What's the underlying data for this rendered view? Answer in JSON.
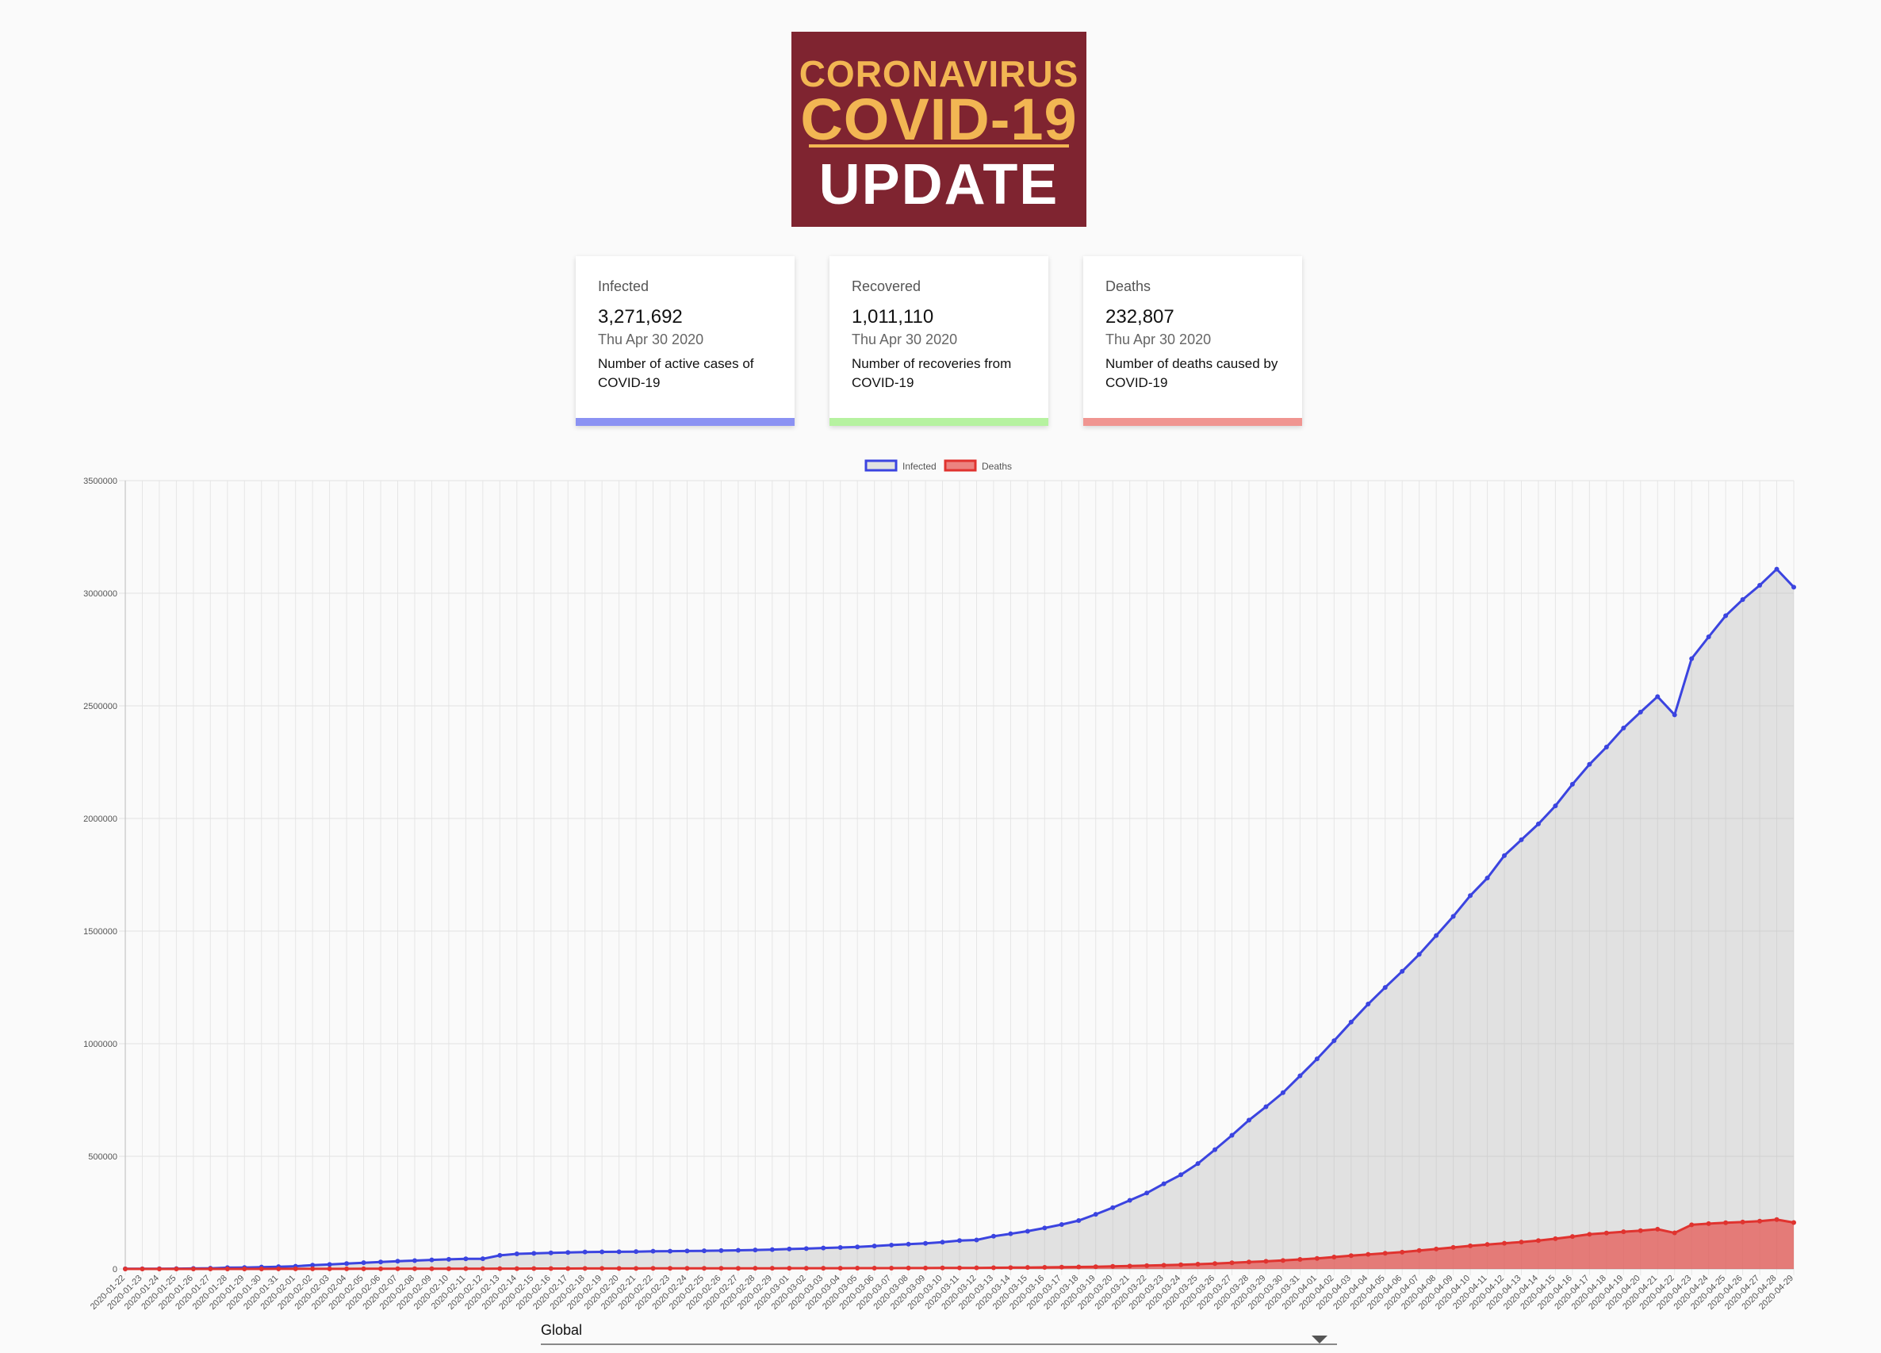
{
  "logo": {
    "line1": "CORONAVIRUS",
    "line2": "COVID-19",
    "line3": "UPDATE"
  },
  "cards": [
    {
      "title": "Infected",
      "value": "3,271,692",
      "date": "Thu Apr 30 2020",
      "desc": "Number of active cases of COVID-19",
      "color": "#8b92f3"
    },
    {
      "title": "Recovered",
      "value": "1,011,110",
      "date": "Thu Apr 30 2020",
      "desc": "Number of recoveries from COVID-19",
      "color": "#b6f2a0"
    },
    {
      "title": "Deaths",
      "value": "232,807",
      "date": "Thu Apr 30 2020",
      "desc": "Number of deaths caused by COVID-19",
      "color": "#f09591"
    }
  ],
  "country_select": {
    "value": "Global"
  },
  "chart_data": {
    "type": "line",
    "legend": "top-center",
    "grid": true,
    "ylim": [
      0,
      3500000
    ],
    "yticks": [
      "0",
      "500000",
      "1000000",
      "1500000",
      "2000000",
      "2500000",
      "3000000",
      "3500000"
    ],
    "x": [
      "2020-01-22",
      "2020-01-23",
      "2020-01-24",
      "2020-01-25",
      "2020-01-26",
      "2020-01-27",
      "2020-01-28",
      "2020-01-29",
      "2020-01-30",
      "2020-01-31",
      "2020-02-01",
      "2020-02-02",
      "2020-02-03",
      "2020-02-04",
      "2020-02-05",
      "2020-02-06",
      "2020-02-07",
      "2020-02-08",
      "2020-02-09",
      "2020-02-10",
      "2020-02-11",
      "2020-02-12",
      "2020-02-13",
      "2020-02-14",
      "2020-02-15",
      "2020-02-16",
      "2020-02-17",
      "2020-02-18",
      "2020-02-19",
      "2020-02-20",
      "2020-02-21",
      "2020-02-22",
      "2020-02-23",
      "2020-02-24",
      "2020-02-25",
      "2020-02-26",
      "2020-02-27",
      "2020-02-28",
      "2020-02-29",
      "2020-03-01",
      "2020-03-02",
      "2020-03-03",
      "2020-03-04",
      "2020-03-05",
      "2020-03-06",
      "2020-03-07",
      "2020-03-08",
      "2020-03-09",
      "2020-03-10",
      "2020-03-11",
      "2020-03-12",
      "2020-03-13",
      "2020-03-14",
      "2020-03-15",
      "2020-03-16",
      "2020-03-17",
      "2020-03-18",
      "2020-03-19",
      "2020-03-20",
      "2020-03-21",
      "2020-03-22",
      "2020-03-23",
      "2020-03-24",
      "2020-03-25",
      "2020-03-26",
      "2020-03-27",
      "2020-03-28",
      "2020-03-29",
      "2020-03-30",
      "2020-03-31",
      "2020-04-01",
      "2020-04-02",
      "2020-04-03",
      "2020-04-04",
      "2020-04-05",
      "2020-04-06",
      "2020-04-07",
      "2020-04-08",
      "2020-04-09",
      "2020-04-10",
      "2020-04-11",
      "2020-04-12",
      "2020-04-13",
      "2020-04-14",
      "2020-04-15",
      "2020-04-16",
      "2020-04-17",
      "2020-04-18",
      "2020-04-19",
      "2020-04-20",
      "2020-04-21",
      "2020-04-22",
      "2020-04-23",
      "2020-04-24",
      "2020-04-25",
      "2020-04-26",
      "2020-04-27",
      "2020-04-28",
      "2020-04-29"
    ],
    "series": [
      {
        "name": "Infected",
        "color": "#3b44e0",
        "fill": "rgba(170,170,170,0.3)",
        "values": [
          555,
          654,
          941,
          1434,
          2118,
          2927,
          5578,
          6166,
          8234,
          9927,
          12038,
          16787,
          19881,
          23892,
          27635,
          30794,
          34391,
          37120,
          40150,
          42762,
          44802,
          45221,
          60368,
          66885,
          69030,
          71224,
          73258,
          75136,
          75639,
          76197,
          76819,
          78572,
          78958,
          79561,
          80406,
          81388,
          82746,
          84112,
          86011,
          88369,
          90306,
          92840,
          95120,
          97886,
          101801,
          105847,
          109821,
          113590,
          118620,
          125875,
          128352,
          145205,
          156101,
          167454,
          181574,
          197102,
          214821,
          242570,
          272208,
          304507,
          336953,
          378235,
          418045,
          467653,
          529591,
          593291,
          660706,
          720117,
          782365,
          857487,
          932605,
          1013157,
          1095917,
          1176060,
          1249754,
          1321481,
          1396476,
          1480202,
          1565278,
          1657526,
          1735650,
          1835145,
          1905192,
          1975581,
          2055932,
          2151847,
          2240182,
          2316912,
          2401379,
          2472258,
          2541054,
          2460052,
          2709434,
          2806200,
          2900158,
          2971669,
          3035300,
          3107000,
          3027000
        ]
      },
      {
        "name": "Deaths",
        "color": "#e0332f",
        "fill": "rgba(230,80,75,0.7)",
        "values": [
          17,
          18,
          26,
          42,
          56,
          82,
          131,
          133,
          171,
          213,
          259,
          362,
          426,
          492,
          564,
          634,
          719,
          806,
          906,
          1013,
          1113,
          1118,
          1371,
          1523,
          1666,
          1770,
          1868,
          2007,
          2122,
          2247,
          2251,
          2458,
          2469,
          2629,
          2708,
          2770,
          2814,
          2872,
          2941,
          2996,
          3085,
          3160,
          3254,
          3348,
          3460,
          3558,
          3802,
          3988,
          4262,
          4615,
          4720,
          5404,
          5819,
          6440,
          7126,
          7905,
          8733,
          9867,
          11299,
          12973,
          14623,
          16497,
          18615,
          21181,
          23970,
          27198,
          30652,
          33925,
          37582,
          42107,
          46809,
          52983,
          58787,
          64606,
          69374,
          74565,
          81937,
          88338,
          95455,
          102525,
          108503,
          114090,
          119481,
          125983,
          134176,
          143800,
          153822,
          159510,
          165044,
          169986,
          176583,
          160000,
          196000,
          201000,
          205000,
          208000,
          212000,
          219000,
          206000
        ]
      }
    ]
  }
}
